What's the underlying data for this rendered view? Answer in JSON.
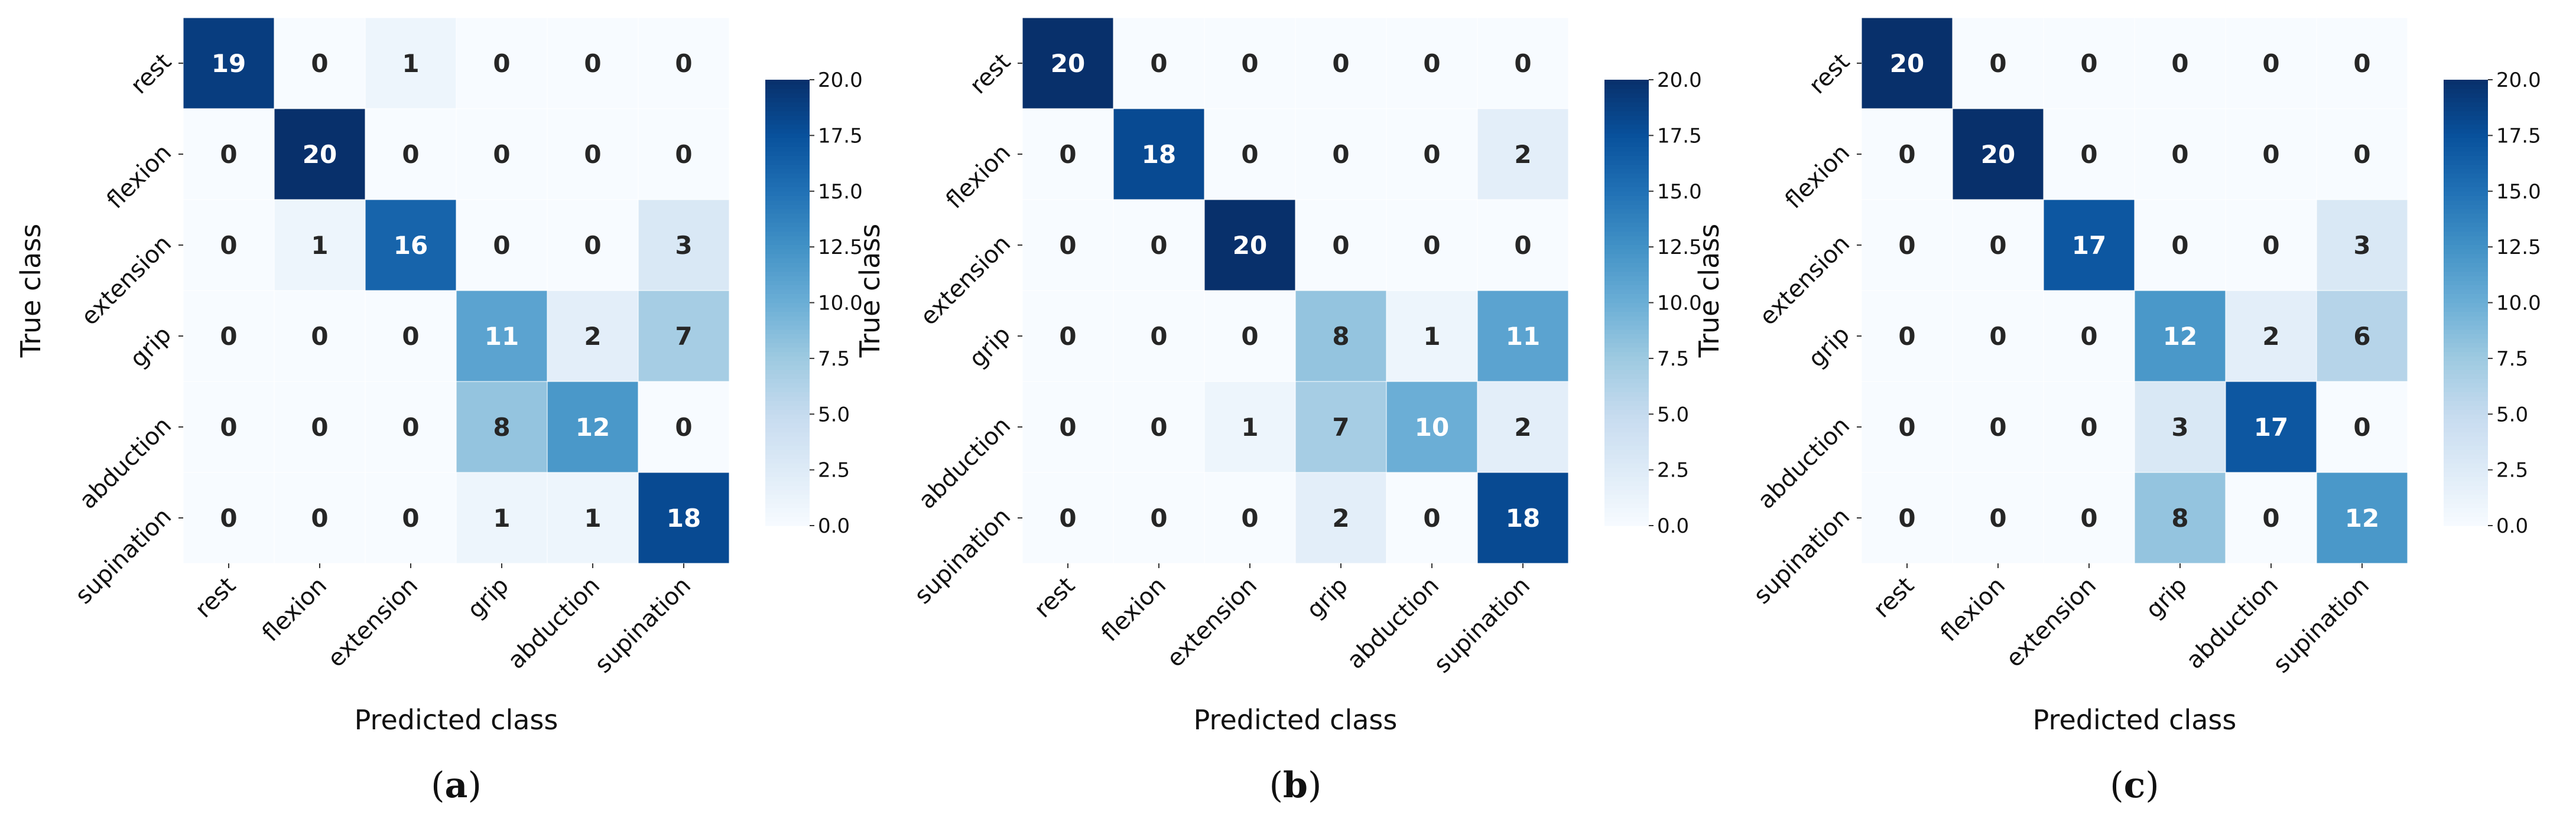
{
  "chart_data": [
    {
      "type": "heatmap",
      "caption": "(a)",
      "caption_letter": "a",
      "xlabel": "Predicted class",
      "ylabel": "True class",
      "x_categories": [
        "rest",
        "flexion",
        "extension",
        "grip",
        "abduction",
        "supination"
      ],
      "y_categories": [
        "rest",
        "flexion",
        "extension",
        "grip",
        "abduction",
        "supination"
      ],
      "values": [
        [
          19,
          0,
          1,
          0,
          0,
          0
        ],
        [
          0,
          20,
          0,
          0,
          0,
          0
        ],
        [
          0,
          1,
          16,
          0,
          0,
          3
        ],
        [
          0,
          0,
          0,
          11,
          2,
          7
        ],
        [
          0,
          0,
          0,
          8,
          12,
          0
        ],
        [
          0,
          0,
          0,
          1,
          1,
          18
        ]
      ],
      "colorbar": {
        "range": [
          0,
          20
        ],
        "ticks": [
          "0.0",
          "2.5",
          "5.0",
          "7.5",
          "10.0",
          "12.5",
          "15.0",
          "17.5",
          "20.0"
        ],
        "colormap": "Blues"
      }
    },
    {
      "type": "heatmap",
      "caption": "(b)",
      "caption_letter": "b",
      "xlabel": "Predicted class",
      "ylabel": "True class",
      "x_categories": [
        "rest",
        "flexion",
        "extension",
        "grip",
        "abduction",
        "supination"
      ],
      "y_categories": [
        "rest",
        "flexion",
        "extension",
        "grip",
        "abduction",
        "supination"
      ],
      "values": [
        [
          20,
          0,
          0,
          0,
          0,
          0
        ],
        [
          0,
          18,
          0,
          0,
          0,
          2
        ],
        [
          0,
          0,
          20,
          0,
          0,
          0
        ],
        [
          0,
          0,
          0,
          8,
          1,
          11
        ],
        [
          0,
          0,
          1,
          7,
          10,
          2
        ],
        [
          0,
          0,
          0,
          2,
          0,
          18
        ]
      ],
      "colorbar": {
        "range": [
          0,
          20
        ],
        "ticks": [
          "0.0",
          "2.5",
          "5.0",
          "7.5",
          "10.0",
          "12.5",
          "15.0",
          "17.5",
          "20.0"
        ],
        "colormap": "Blues"
      }
    },
    {
      "type": "heatmap",
      "caption": "(c)",
      "caption_letter": "c",
      "xlabel": "Predicted class",
      "ylabel": "True class",
      "x_categories": [
        "rest",
        "flexion",
        "extension",
        "grip",
        "abduction",
        "supination"
      ],
      "y_categories": [
        "rest",
        "flexion",
        "extension",
        "grip",
        "abduction",
        "supination"
      ],
      "values": [
        [
          20,
          0,
          0,
          0,
          0,
          0
        ],
        [
          0,
          20,
          0,
          0,
          0,
          0
        ],
        [
          0,
          0,
          17,
          0,
          0,
          3
        ],
        [
          0,
          0,
          0,
          12,
          2,
          6
        ],
        [
          0,
          0,
          0,
          3,
          17,
          0
        ],
        [
          0,
          0,
          0,
          8,
          0,
          12
        ]
      ],
      "colorbar": {
        "range": [
          0,
          20
        ],
        "ticks": [
          "0.0",
          "2.5",
          "5.0",
          "7.5",
          "10.0",
          "12.5",
          "15.0",
          "17.5",
          "20.0"
        ],
        "colormap": "Blues"
      }
    }
  ],
  "colors": {
    "blues": [
      "#f7fbff",
      "#deebf7",
      "#c6dbef",
      "#9ecae1",
      "#6baed6",
      "#4292c6",
      "#2171b5",
      "#08519c",
      "#08306b"
    ],
    "text_dark": "#262626",
    "text_light": "#ffffff"
  }
}
